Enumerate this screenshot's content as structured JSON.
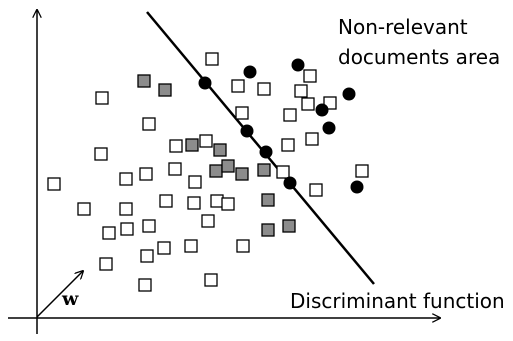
{
  "labels": {
    "non_relevant_line1": "Non-relevant",
    "non_relevant_line2": "documents area",
    "discriminant": "Discriminant function",
    "w": "w"
  },
  "colors": {
    "ink": "#000000",
    "gray_fill": "#8c8c8c",
    "white_fill": "#ffffff"
  },
  "markers": {
    "open_squares": 41,
    "gray_squares": 11,
    "black_circles": 10
  }
}
